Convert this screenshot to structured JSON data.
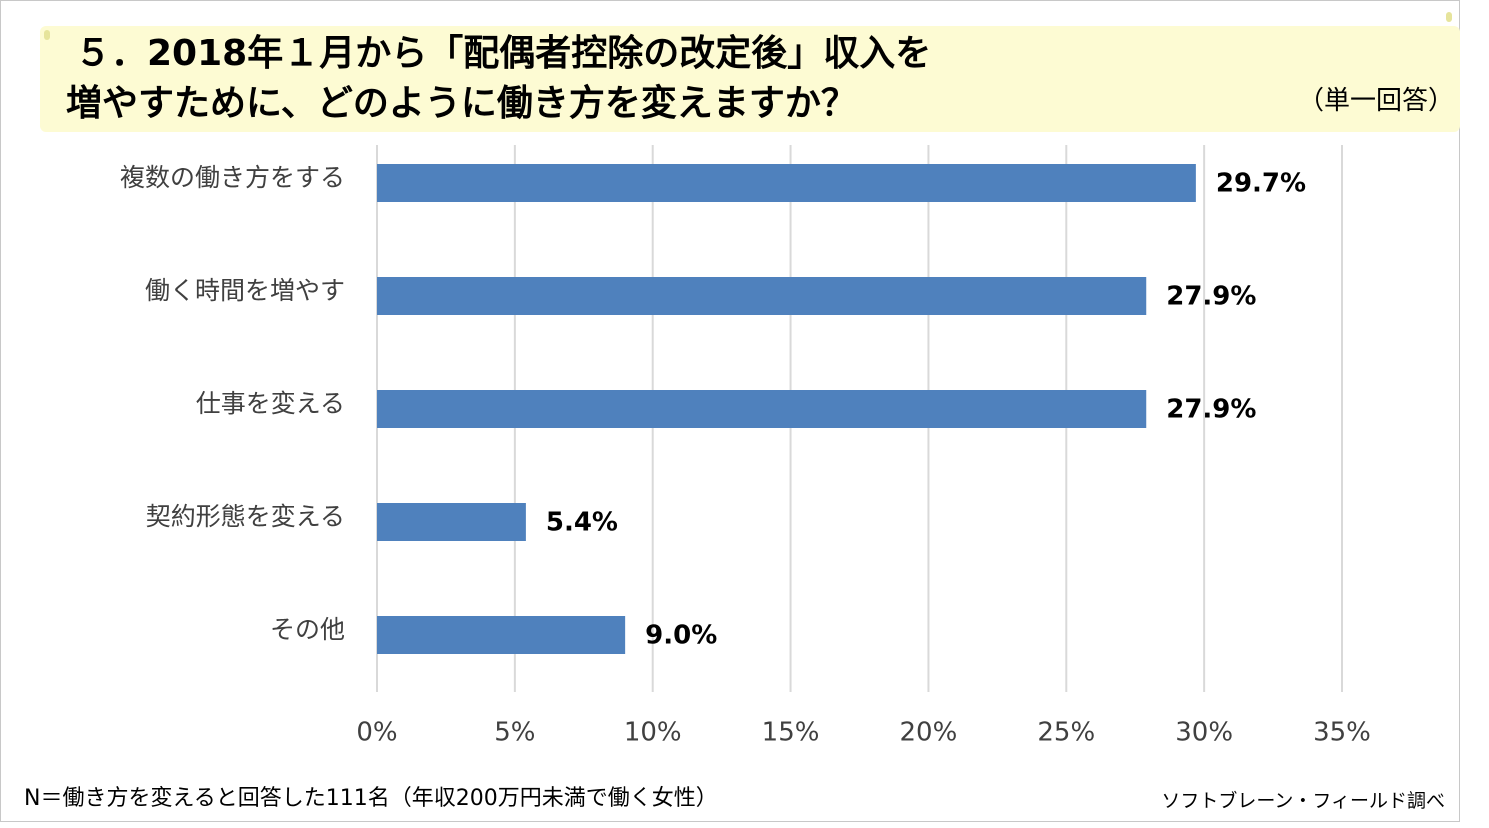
{
  "title": {
    "line1": "５．2018年１月から「配偶者控除の改定後」収入を",
    "line2": "増やすために、どのように働き方を変えますか？",
    "note": "（単一回答）"
  },
  "footnote": {
    "left": "N＝働き方を変えると回答した111名（年収200万円未満で働く女性）",
    "right": "ソフトブレーン・フィールド調べ"
  },
  "colors": {
    "bar": "#4f81bd",
    "grid": "#d9d9d9",
    "banner": "#fdfbd3"
  },
  "chart_data": {
    "type": "bar",
    "orientation": "horizontal",
    "categories": [
      "複数の働き方をする",
      "働く時間を増やす",
      "仕事を変える",
      "契約形態を変える",
      "その他"
    ],
    "values": [
      29.7,
      27.9,
      27.9,
      5.4,
      9.0
    ],
    "value_labels": [
      "29.7%",
      "27.9%",
      "27.9%",
      "5.4%",
      "9.0%"
    ],
    "xlim": [
      0,
      35
    ],
    "xticks": [
      0,
      5,
      10,
      15,
      20,
      25,
      30,
      35
    ],
    "xtick_labels": [
      "0%",
      "5%",
      "10%",
      "15%",
      "20%",
      "25%",
      "30%",
      "35%"
    ],
    "grid": "vertical",
    "legend": "none"
  }
}
